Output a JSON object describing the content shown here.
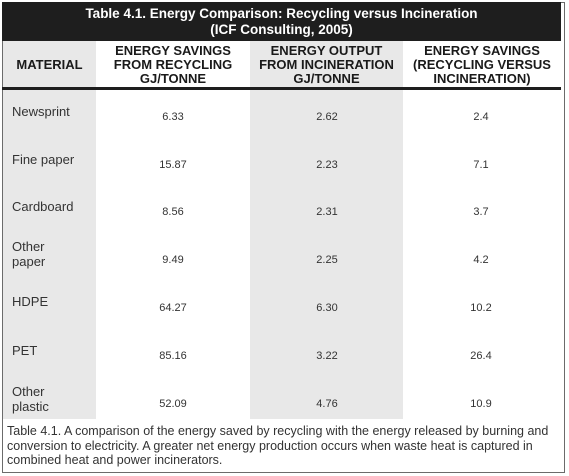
{
  "table": {
    "title_line1": "Table 4.1. Energy Comparison: Recycling versus Incineration",
    "title_line2": "(ICF Consulting, 2005)",
    "headers": {
      "material": "MATERIAL",
      "savings_recycling": [
        "ENERGY SAVINGS",
        "FROM RECYCLING",
        "GJ/TONNE"
      ],
      "output_incineration": [
        "ENERGY OUTPUT",
        "FROM INCINERATION",
        "GJ/TONNE"
      ],
      "savings_vs": [
        "ENERGY SAVINGS",
        "(RECYCLING VERSUS",
        "INCINERATION)"
      ]
    },
    "rows": [
      {
        "material": [
          "Newsprint"
        ],
        "recycling": "6.33",
        "incineration": "2.62",
        "net": "2.4"
      },
      {
        "material": [
          "Fine paper"
        ],
        "recycling": "15.87",
        "incineration": "2.23",
        "net": "7.1"
      },
      {
        "material": [
          "Cardboard"
        ],
        "recycling": "8.56",
        "incineration": "2.31",
        "net": "3.7"
      },
      {
        "material": [
          "Other",
          "paper"
        ],
        "recycling": "9.49",
        "incineration": "2.25",
        "net": "4.2"
      },
      {
        "material": [
          "HDPE"
        ],
        "recycling": "64.27",
        "incineration": "6.30",
        "net": "10.2"
      },
      {
        "material": [
          "PET"
        ],
        "recycling": "85.16",
        "incineration": "3.22",
        "net": "26.4"
      },
      {
        "material": [
          "Other",
          "plastic"
        ],
        "recycling": "52.09",
        "incineration": "4.76",
        "net": "10.9"
      }
    ],
    "caption": "Table 4.1. A comparison of the energy saved by recycling with the energy released by burning and conversion to electricity. A greater net energy production occurs when waste heat is captured in combined heat and power incinerators."
  }
}
